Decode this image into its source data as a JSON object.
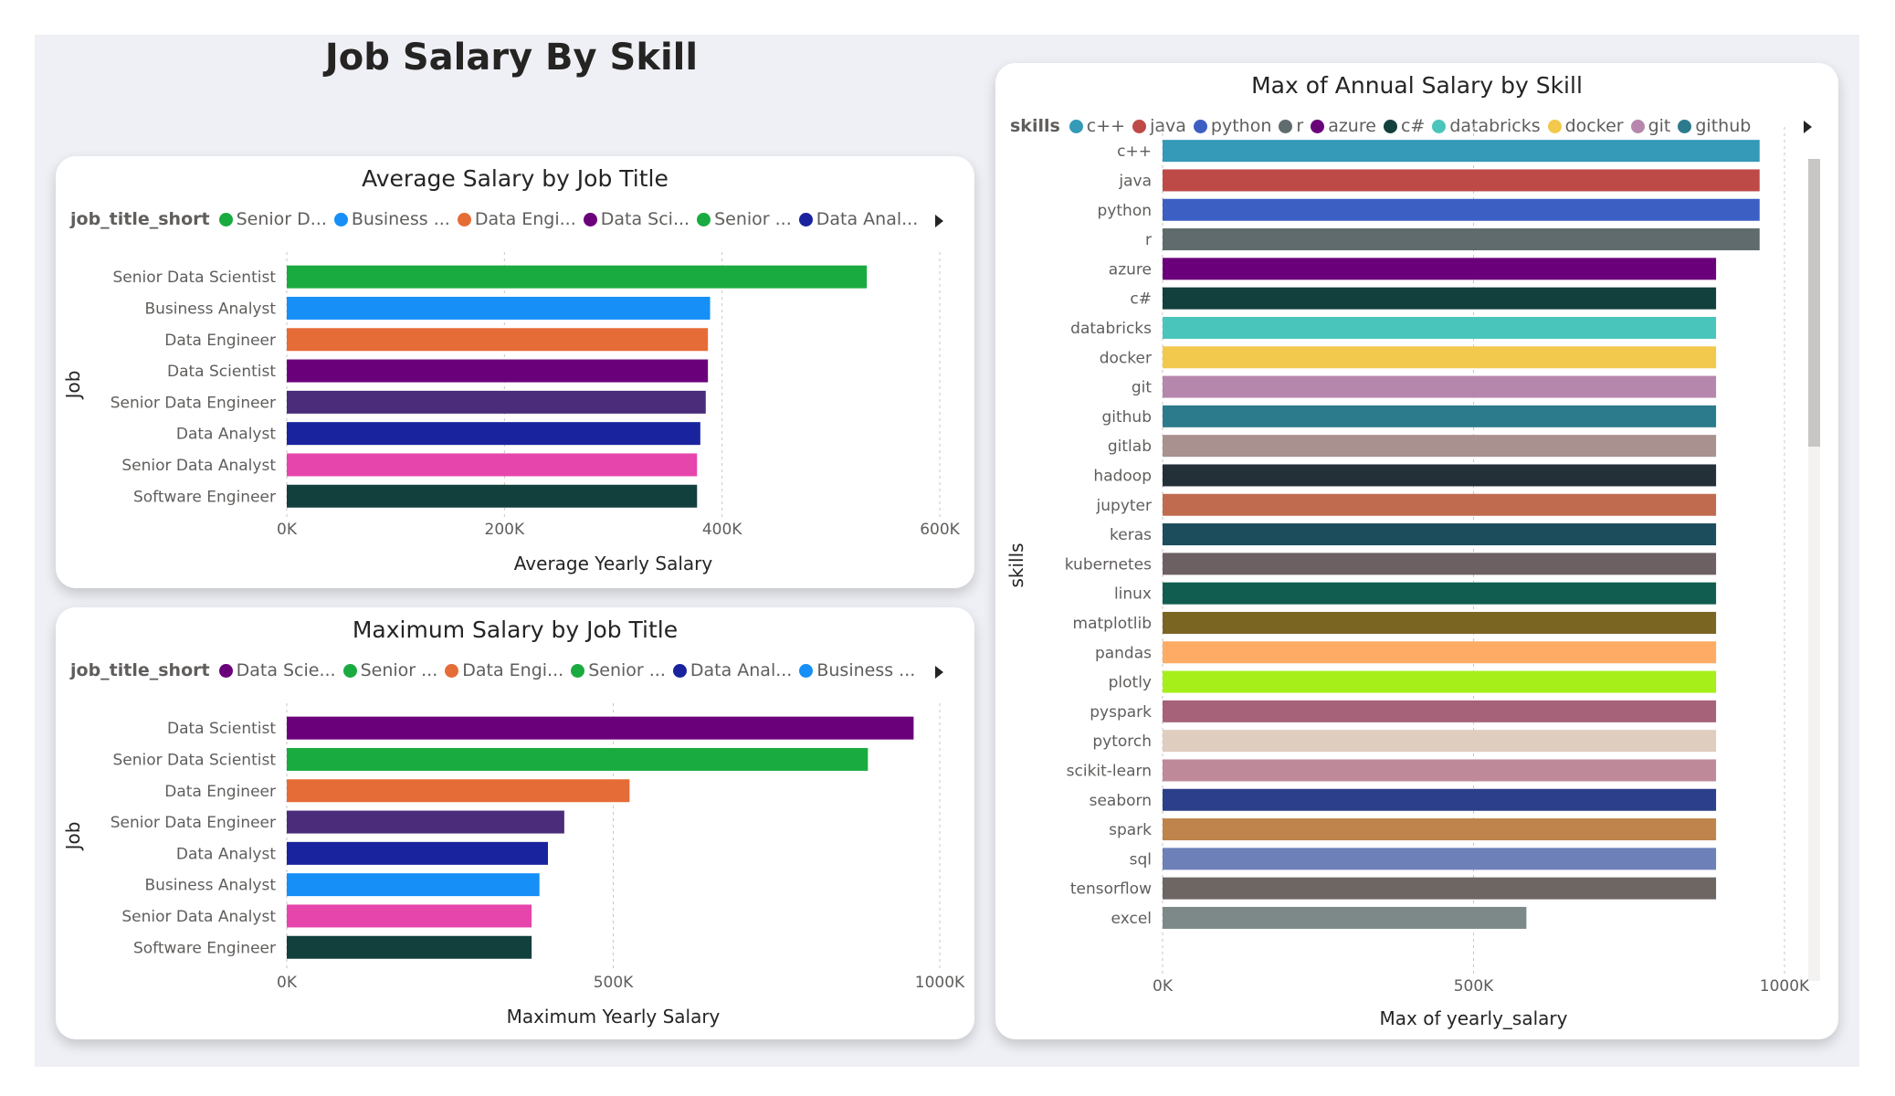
{
  "page": {
    "title": "Job Salary By Skill"
  },
  "chart_data": [
    {
      "id": "avg",
      "type": "bar",
      "orientation": "horizontal",
      "title": "Average Salary by Job Title",
      "legend_title": "job_title_short",
      "legend_items": [
        "Senior D...",
        "Business ...",
        "Data Engi...",
        "Data Sci...",
        "Senior ...",
        "Data Anal..."
      ],
      "legend_placement": "top-left",
      "ylabel": "Job",
      "xlabel": "Average Yearly Salary",
      "xlim": [
        0,
        600000
      ],
      "xticks": [
        "0K",
        "200K",
        "400K",
        "600K"
      ],
      "grid": true,
      "categories": [
        "Senior Data Scientist",
        "Business Analyst",
        "Data Engineer",
        "Data Scientist",
        "Senior Data Engineer",
        "Data Analyst",
        "Senior Data Analyst",
        "Software Engineer"
      ],
      "values": [
        533000,
        389000,
        387000,
        387000,
        385000,
        380000,
        377000,
        377000
      ],
      "colors": [
        "#1aab40",
        "#168ff7",
        "#e66c37",
        "#6b007b",
        "#4a2c7a",
        "#1a239e",
        "#e645ab",
        "#12403c"
      ]
    },
    {
      "id": "max",
      "type": "bar",
      "orientation": "horizontal",
      "title": "Maximum Salary by Job Title",
      "legend_title": "job_title_short",
      "legend_items": [
        "Data Scie...",
        "Senior ...",
        "Data Engi...",
        "Senior ...",
        "Data Anal...",
        "Business ..."
      ],
      "legend_placement": "top-left",
      "ylabel": "Job",
      "xlabel": "Maximum Yearly Salary",
      "xlim": [
        0,
        1000000
      ],
      "xticks": [
        "0K",
        "500K",
        "1000K"
      ],
      "grid": true,
      "categories": [
        "Data Scientist",
        "Senior Data Scientist",
        "Data Engineer",
        "Senior Data Engineer",
        "Data Analyst",
        "Business Analyst",
        "Senior Data Analyst",
        "Software Engineer"
      ],
      "values": [
        960000,
        890000,
        525000,
        425000,
        400000,
        387000,
        375000,
        375000
      ],
      "colors": [
        "#6b007b",
        "#1aab40",
        "#e66c37",
        "#4a2c7a",
        "#1a239e",
        "#168ff7",
        "#e645ab",
        "#12403c"
      ]
    },
    {
      "id": "skills",
      "type": "bar",
      "orientation": "horizontal",
      "title": "Max of Annual Salary by Skill",
      "legend_title": "skills",
      "legend_items": [
        "c++",
        "java",
        "python",
        "r",
        "azure",
        "c#",
        "databricks",
        "docker",
        "git",
        "github"
      ],
      "legend_placement": "top-left",
      "ylabel": "skills",
      "xlabel": "Max of yearly_salary",
      "xlim": [
        0,
        1000000
      ],
      "xticks": [
        "0K",
        "500K",
        "1000K"
      ],
      "grid": true,
      "categories": [
        "c++",
        "java",
        "python",
        "r",
        "azure",
        "c#",
        "databricks",
        "docker",
        "git",
        "github",
        "gitlab",
        "hadoop",
        "jupyter",
        "keras",
        "kubernetes",
        "linux",
        "matplotlib",
        "pandas",
        "plotly",
        "pyspark",
        "pytorch",
        "scikit-learn",
        "seaborn",
        "spark",
        "sql",
        "tensorflow",
        "excel"
      ],
      "values": [
        960000,
        960000,
        960000,
        960000,
        890000,
        890000,
        890000,
        890000,
        890000,
        890000,
        890000,
        890000,
        890000,
        890000,
        890000,
        890000,
        890000,
        890000,
        890000,
        890000,
        890000,
        890000,
        890000,
        890000,
        890000,
        890000,
        585000
      ],
      "colors": [
        "#3599b8",
        "#be4a47",
        "#3c5fc4",
        "#5f6b6d",
        "#6b007b",
        "#12403c",
        "#4ac5bb",
        "#f2c94c",
        "#b687ac",
        "#2c7b8c",
        "#a99190",
        "#233038",
        "#c06b4f",
        "#1b4d5c",
        "#6d6063",
        "#115e50",
        "#7b6523",
        "#fdab65",
        "#a6ef18",
        "#a66278",
        "#dfcdbf",
        "#be8a99",
        "#2b3f8a",
        "#be844b",
        "#6d80b8",
        "#6d6663",
        "#7d8988"
      ]
    }
  ]
}
